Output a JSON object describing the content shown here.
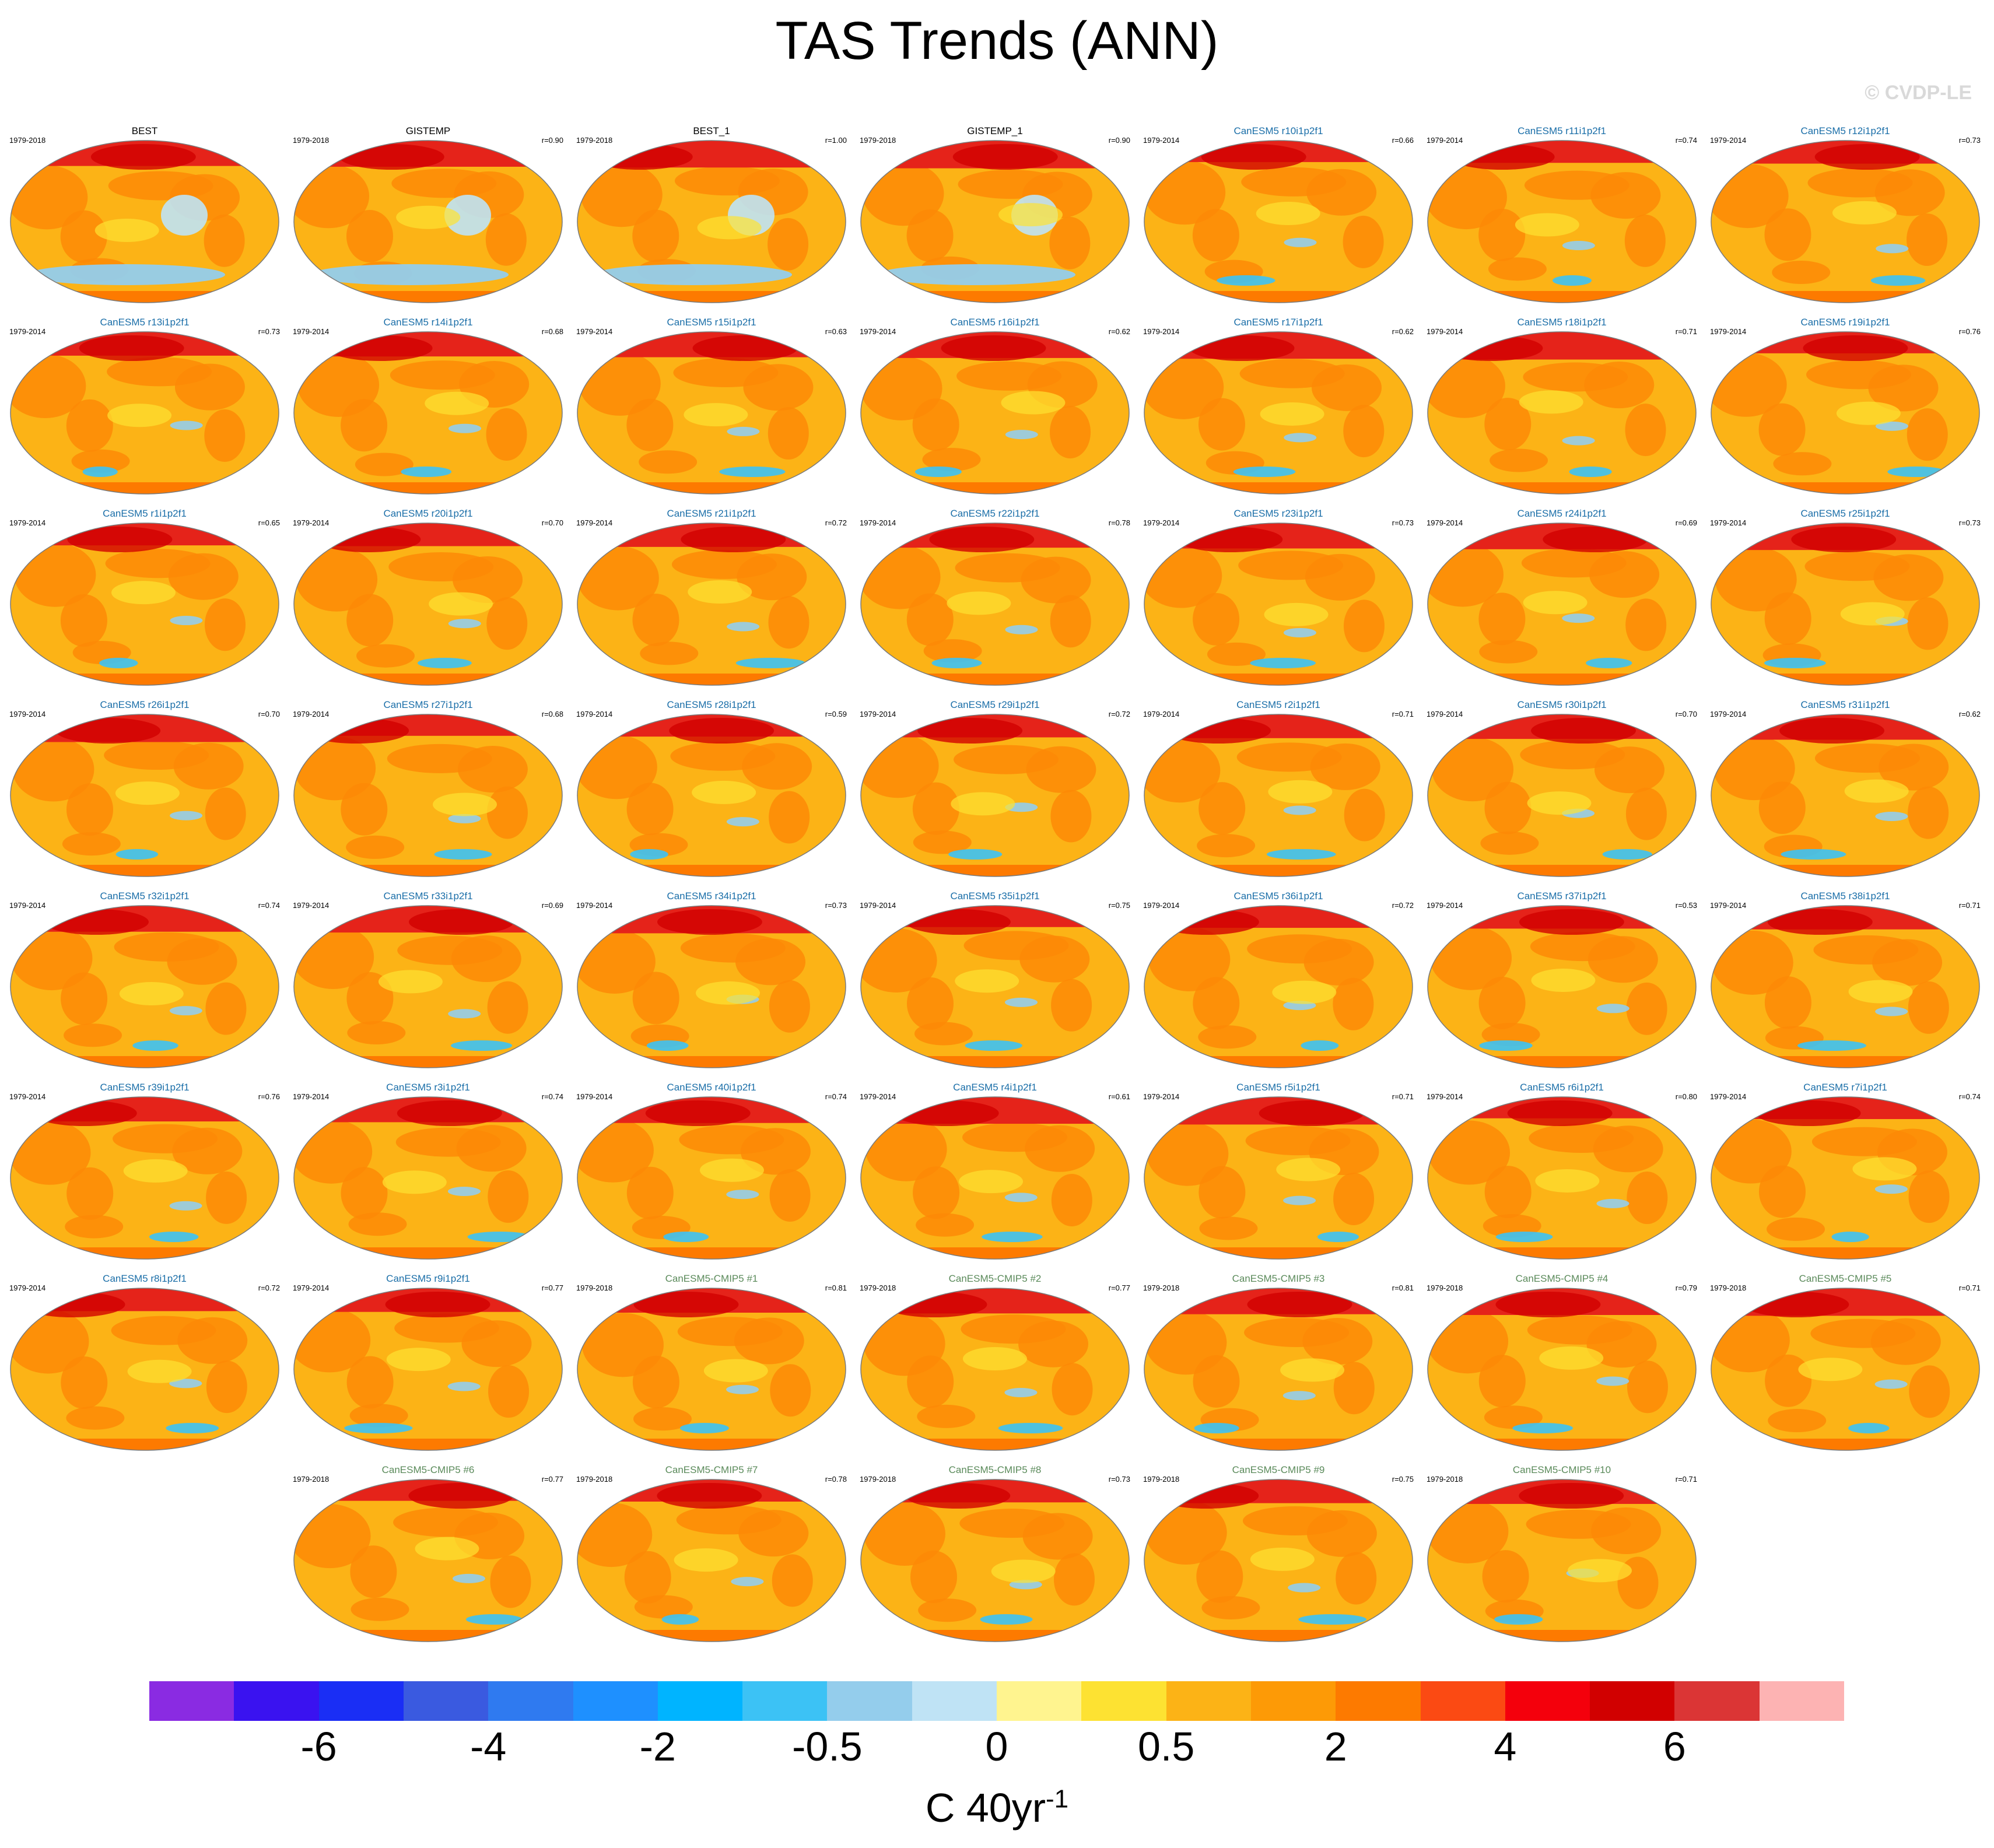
{
  "title": "TAS Trends (ANN)",
  "watermark": "© CVDP-LE",
  "colors": {
    "model_label": "#1a6ea8",
    "cmip5_label": "#5a8a5a",
    "obs_label": "#000000",
    "ocean_base": "#fcb316",
    "land_mid": "#fd8a06",
    "arctic": "#e5231a"
  },
  "panels": [
    {
      "label": "BEST",
      "years": "1979-2018",
      "r": "",
      "kind": "obs"
    },
    {
      "label": "GISTEMP",
      "years": "1979-2018",
      "r": "r=0.90",
      "kind": "obs"
    },
    {
      "label": "BEST_1",
      "years": "1979-2018",
      "r": "r=1.00",
      "kind": "obs"
    },
    {
      "label": "GISTEMP_1",
      "years": "1979-2018",
      "r": "r=0.90",
      "kind": "obs"
    },
    {
      "label": "CanESM5 r10i1p2f1",
      "years": "1979-2014",
      "r": "r=0.66",
      "kind": "model"
    },
    {
      "label": "CanESM5 r11i1p2f1",
      "years": "1979-2014",
      "r": "r=0.74",
      "kind": "model"
    },
    {
      "label": "CanESM5 r12i1p2f1",
      "years": "1979-2014",
      "r": "r=0.73",
      "kind": "model"
    },
    {
      "label": "CanESM5 r13i1p2f1",
      "years": "1979-2014",
      "r": "r=0.73",
      "kind": "model"
    },
    {
      "label": "CanESM5 r14i1p2f1",
      "years": "1979-2014",
      "r": "r=0.68",
      "kind": "model"
    },
    {
      "label": "CanESM5 r15i1p2f1",
      "years": "1979-2014",
      "r": "r=0.63",
      "kind": "model"
    },
    {
      "label": "CanESM5 r16i1p2f1",
      "years": "1979-2014",
      "r": "r=0.62",
      "kind": "model"
    },
    {
      "label": "CanESM5 r17i1p2f1",
      "years": "1979-2014",
      "r": "r=0.62",
      "kind": "model"
    },
    {
      "label": "CanESM5 r18i1p2f1",
      "years": "1979-2014",
      "r": "r=0.71",
      "kind": "model"
    },
    {
      "label": "CanESM5 r19i1p2f1",
      "years": "1979-2014",
      "r": "r=0.76",
      "kind": "model"
    },
    {
      "label": "CanESM5 r1i1p2f1",
      "years": "1979-2014",
      "r": "r=0.65",
      "kind": "model"
    },
    {
      "label": "CanESM5 r20i1p2f1",
      "years": "1979-2014",
      "r": "r=0.70",
      "kind": "model"
    },
    {
      "label": "CanESM5 r21i1p2f1",
      "years": "1979-2014",
      "r": "r=0.72",
      "kind": "model"
    },
    {
      "label": "CanESM5 r22i1p2f1",
      "years": "1979-2014",
      "r": "r=0.78",
      "kind": "model"
    },
    {
      "label": "CanESM5 r23i1p2f1",
      "years": "1979-2014",
      "r": "r=0.73",
      "kind": "model"
    },
    {
      "label": "CanESM5 r24i1p2f1",
      "years": "1979-2014",
      "r": "r=0.69",
      "kind": "model"
    },
    {
      "label": "CanESM5 r25i1p2f1",
      "years": "1979-2014",
      "r": "r=0.73",
      "kind": "model"
    },
    {
      "label": "CanESM5 r26i1p2f1",
      "years": "1979-2014",
      "r": "r=0.70",
      "kind": "model"
    },
    {
      "label": "CanESM5 r27i1p2f1",
      "years": "1979-2014",
      "r": "r=0.68",
      "kind": "model"
    },
    {
      "label": "CanESM5 r28i1p2f1",
      "years": "1979-2014",
      "r": "r=0.59",
      "kind": "model"
    },
    {
      "label": "CanESM5 r29i1p2f1",
      "years": "1979-2014",
      "r": "r=0.72",
      "kind": "model"
    },
    {
      "label": "CanESM5 r2i1p2f1",
      "years": "1979-2014",
      "r": "r=0.71",
      "kind": "model"
    },
    {
      "label": "CanESM5 r30i1p2f1",
      "years": "1979-2014",
      "r": "r=0.70",
      "kind": "model"
    },
    {
      "label": "CanESM5 r31i1p2f1",
      "years": "1979-2014",
      "r": "r=0.62",
      "kind": "model"
    },
    {
      "label": "CanESM5 r32i1p2f1",
      "years": "1979-2014",
      "r": "r=0.74",
      "kind": "model"
    },
    {
      "label": "CanESM5 r33i1p2f1",
      "years": "1979-2014",
      "r": "r=0.69",
      "kind": "model"
    },
    {
      "label": "CanESM5 r34i1p2f1",
      "years": "1979-2014",
      "r": "r=0.73",
      "kind": "model"
    },
    {
      "label": "CanESM5 r35i1p2f1",
      "years": "1979-2014",
      "r": "r=0.75",
      "kind": "model"
    },
    {
      "label": "CanESM5 r36i1p2f1",
      "years": "1979-2014",
      "r": "r=0.72",
      "kind": "model"
    },
    {
      "label": "CanESM5 r37i1p2f1",
      "years": "1979-2014",
      "r": "r=0.53",
      "kind": "model"
    },
    {
      "label": "CanESM5 r38i1p2f1",
      "years": "1979-2014",
      "r": "r=0.71",
      "kind": "model"
    },
    {
      "label": "CanESM5 r39i1p2f1",
      "years": "1979-2014",
      "r": "r=0.76",
      "kind": "model"
    },
    {
      "label": "CanESM5 r3i1p2f1",
      "years": "1979-2014",
      "r": "r=0.74",
      "kind": "model"
    },
    {
      "label": "CanESM5 r40i1p2f1",
      "years": "1979-2014",
      "r": "r=0.74",
      "kind": "model"
    },
    {
      "label": "CanESM5 r4i1p2f1",
      "years": "1979-2014",
      "r": "r=0.61",
      "kind": "model"
    },
    {
      "label": "CanESM5 r5i1p2f1",
      "years": "1979-2014",
      "r": "r=0.71",
      "kind": "model"
    },
    {
      "label": "CanESM5 r6i1p2f1",
      "years": "1979-2014",
      "r": "r=0.80",
      "kind": "model"
    },
    {
      "label": "CanESM5 r7i1p2f1",
      "years": "1979-2014",
      "r": "r=0.74",
      "kind": "model"
    },
    {
      "label": "CanESM5 r8i1p2f1",
      "years": "1979-2014",
      "r": "r=0.72",
      "kind": "model"
    },
    {
      "label": "CanESM5 r9i1p2f1",
      "years": "1979-2014",
      "r": "r=0.77",
      "kind": "model"
    },
    {
      "label": "CanESM5-CMIP5 #1",
      "years": "1979-2018",
      "r": "r=0.81",
      "kind": "cmip5"
    },
    {
      "label": "CanESM5-CMIP5 #2",
      "years": "1979-2018",
      "r": "r=0.77",
      "kind": "cmip5"
    },
    {
      "label": "CanESM5-CMIP5 #3",
      "years": "1979-2018",
      "r": "r=0.81",
      "kind": "cmip5"
    },
    {
      "label": "CanESM5-CMIP5 #4",
      "years": "1979-2018",
      "r": "r=0.79",
      "kind": "cmip5"
    },
    {
      "label": "CanESM5-CMIP5 #5",
      "years": "1979-2018",
      "r": "r=0.71",
      "kind": "cmip5"
    },
    {
      "label": "CanESM5-CMIP5 #6",
      "years": "1979-2018",
      "r": "r=0.77",
      "kind": "cmip5"
    },
    {
      "label": "CanESM5-CMIP5 #7",
      "years": "1979-2018",
      "r": "r=0.78",
      "kind": "cmip5"
    },
    {
      "label": "CanESM5-CMIP5 #8",
      "years": "1979-2018",
      "r": "r=0.73",
      "kind": "cmip5"
    },
    {
      "label": "CanESM5-CMIP5 #9",
      "years": "1979-2018",
      "r": "r=0.75",
      "kind": "cmip5"
    },
    {
      "label": "CanESM5-CMIP5 #10",
      "years": "1979-2018",
      "r": "r=0.71",
      "kind": "cmip5"
    }
  ],
  "chart_data": {
    "type": "heatmap",
    "title": "TAS Trends (ANN)",
    "units_base": "C 40yr",
    "units_exp": "-1",
    "colorbar": {
      "colors": [
        "#8a2be2",
        "#3a12f0",
        "#1a2ef5",
        "#3a5ae0",
        "#2f7af0",
        "#1e90ff",
        "#00b4ff",
        "#3cc2f5",
        "#94cdec",
        "#bfe3f5",
        "#fff48f",
        "#fde232",
        "#fcb316",
        "#fd9a06",
        "#fd7a00",
        "#fb4a13",
        "#f4000c",
        "#d10000",
        "#db3535",
        "#fdb3b3"
      ],
      "tick_labels": [
        "-6",
        "-4",
        "-2",
        "-0.5",
        "0",
        "0.5",
        "2",
        "4",
        "6"
      ]
    }
  }
}
